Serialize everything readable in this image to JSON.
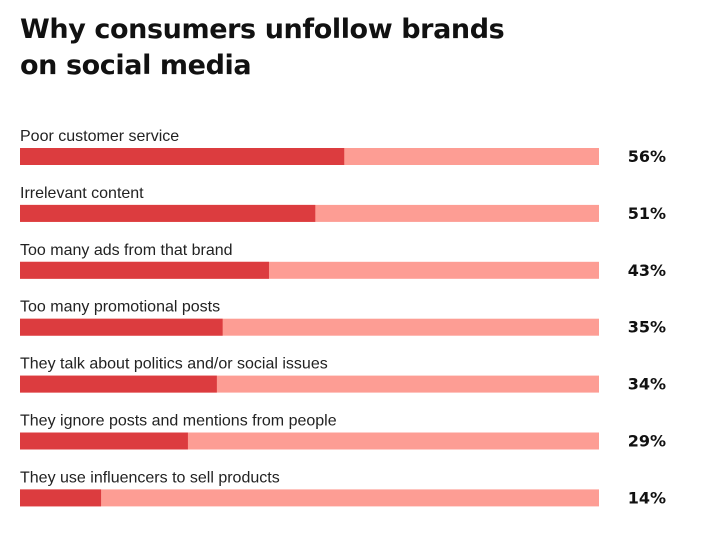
{
  "chart_data": {
    "type": "bar",
    "orientation": "horizontal",
    "title_lines": [
      "Why consumers unfollow brands",
      "on social media"
    ],
    "categories": [
      "Poor customer service",
      "Irrelevant content",
      "Too many ads from that brand",
      "Too many promotional posts",
      "They talk about politics and/or social issues",
      "They ignore posts and mentions from people",
      "They use influencers to sell products"
    ],
    "values": [
      56,
      51,
      43,
      35,
      34,
      29,
      14
    ],
    "value_labels": [
      "56%",
      "51%",
      "43%",
      "35%",
      "34%",
      "29%",
      "14%"
    ],
    "xlim": [
      0,
      100
    ],
    "unit": "%",
    "grid": false,
    "legend": "none",
    "colors": {
      "bar": "#dc3c3f",
      "track": "#fd9d94",
      "text": "#222222",
      "title": "#111111"
    }
  }
}
